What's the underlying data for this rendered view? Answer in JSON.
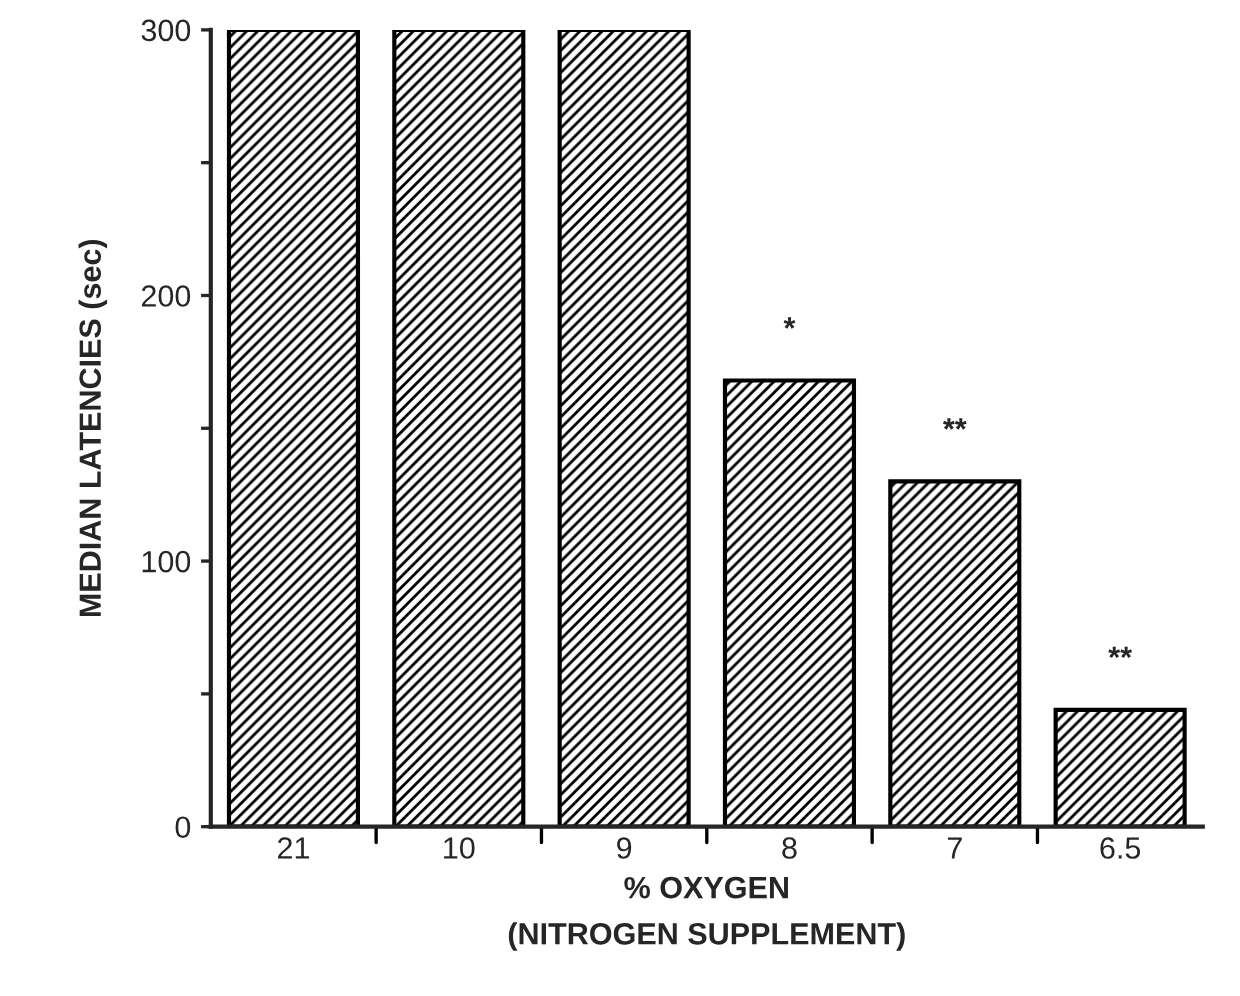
{
  "chart_data": {
    "type": "bar",
    "xlabel": "% OXYGEN\n(NITROGEN SUPPLEMENT)",
    "ylabel": "MEDIAN LATENCIES (sec)",
    "categories": [
      "21",
      "10",
      "9",
      "8",
      "7",
      "6.5"
    ],
    "values": [
      300,
      300,
      300,
      168,
      130,
      44
    ],
    "color": "#000000",
    "ylim": [
      0,
      300
    ],
    "yticks": [
      0,
      {
        "value": 50,
        "label": null
      },
      100,
      {
        "value": 150,
        "label": null
      },
      200,
      {
        "value": 250,
        "label": null
      },
      300
    ],
    "annotations": [
      {
        "text": "*",
        "x": "8",
        "y": 168
      },
      {
        "text": "**",
        "x": "7",
        "y": 130
      },
      {
        "text": "**",
        "x": "6.5",
        "y": 44
      }
    ],
    "grid": false,
    "legend": false
  }
}
